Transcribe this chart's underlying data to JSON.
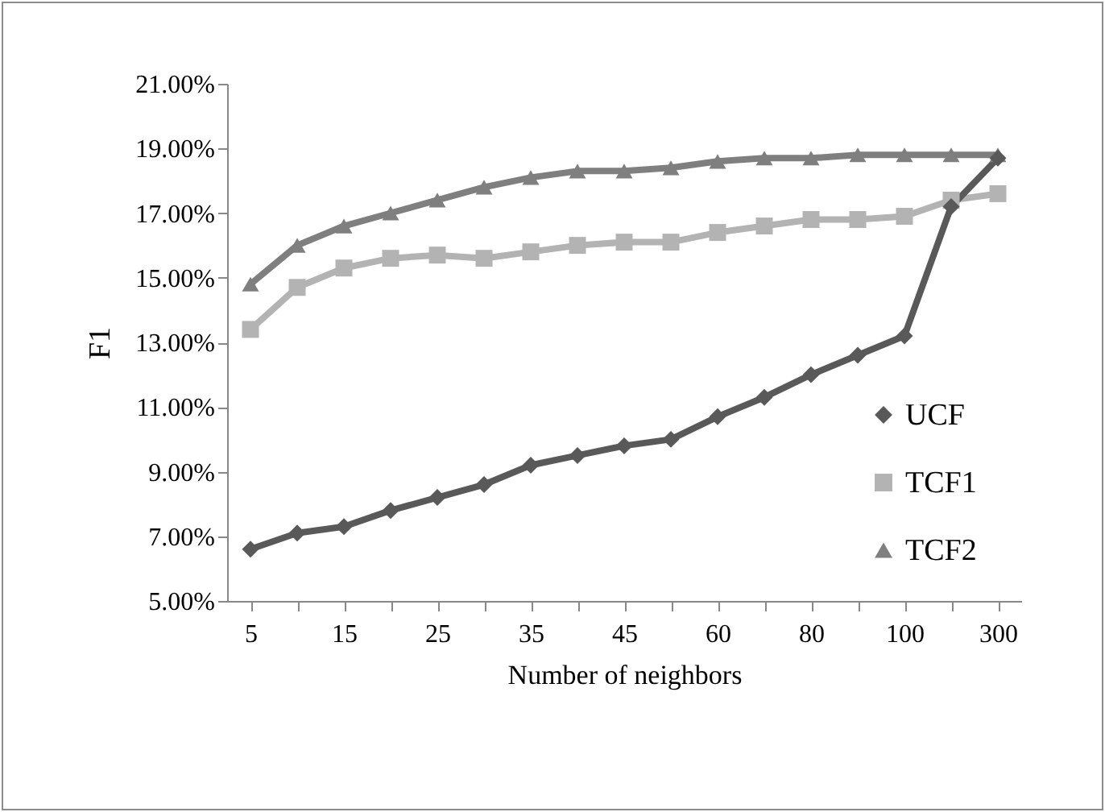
{
  "chart_data": {
    "type": "line",
    "xlabel": "Number of neighbors",
    "ylabel": "F1",
    "categories": [
      "5",
      null,
      "15",
      null,
      "25",
      null,
      "35",
      null,
      "45",
      null,
      "60",
      null,
      "80",
      null,
      "100",
      null,
      "300"
    ],
    "ylim": [
      5,
      21
    ],
    "yticks": [
      {
        "value": 5,
        "label": "5.00%"
      },
      {
        "value": 7,
        "label": "7.00%"
      },
      {
        "value": 9,
        "label": "9.00%"
      },
      {
        "value": 11,
        "label": "11.00%"
      },
      {
        "value": 13,
        "label": "13.00%"
      },
      {
        "value": 15,
        "label": "15.00%"
      },
      {
        "value": 17,
        "label": "17.00%"
      },
      {
        "value": 19,
        "label": "19.00%"
      },
      {
        "value": 21,
        "label": "21.00%"
      }
    ],
    "grid": false,
    "legend": "right",
    "series": [
      {
        "name": "UCF",
        "color": "#595959",
        "marker": "diamond",
        "values": [
          6.6,
          7.1,
          7.3,
          7.8,
          8.2,
          8.6,
          9.2,
          9.5,
          9.8,
          10.0,
          10.7,
          11.3,
          12.0,
          12.6,
          13.2,
          17.2,
          18.7
        ]
      },
      {
        "name": "TCF1",
        "color": "#b3b3b3",
        "marker": "square",
        "values": [
          13.4,
          14.7,
          15.3,
          15.6,
          15.7,
          15.6,
          15.8,
          16.0,
          16.1,
          16.1,
          16.4,
          16.6,
          16.8,
          16.8,
          16.9,
          17.4,
          17.6
        ]
      },
      {
        "name": "TCF2",
        "color": "#7f7f7f",
        "marker": "triangle",
        "values": [
          14.8,
          16.0,
          16.6,
          17.0,
          17.4,
          17.8,
          18.1,
          18.3,
          18.3,
          18.4,
          18.6,
          18.7,
          18.7,
          18.8,
          18.8,
          18.8,
          18.8
        ]
      }
    ]
  }
}
